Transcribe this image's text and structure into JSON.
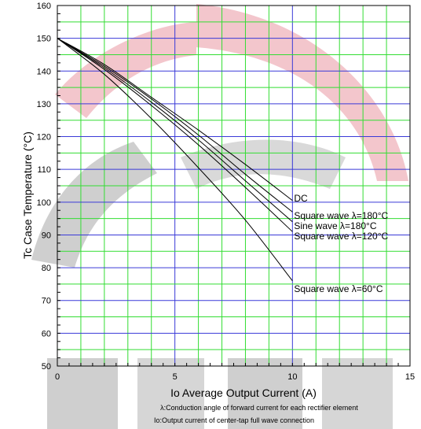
{
  "chart_data": {
    "type": "line",
    "xlabel": "Io    Average Output Current    (A)",
    "ylabel": "Tc    Case Temperature    (°C)",
    "xlim": [
      0,
      15
    ],
    "ylim": [
      50,
      160
    ],
    "x_ticks": [
      0,
      5,
      10,
      15
    ],
    "y_ticks": [
      50,
      60,
      70,
      80,
      90,
      100,
      110,
      120,
      130,
      140,
      150,
      160
    ],
    "grid": true,
    "notes": [
      "λ:Conduction angle of forward current for each rectifier element",
      "Io:Output current of center-tap full wave connection"
    ],
    "series": [
      {
        "name": "DC",
        "x": [
          0,
          2,
          4,
          6,
          8,
          10
        ],
        "y": [
          150,
          142,
          132,
          122,
          111.5,
          100.5
        ]
      },
      {
        "name": "Square wave λ=180°C",
        "x": [
          0,
          2,
          4,
          6,
          8,
          10
        ],
        "y": [
          150,
          141.5,
          131.5,
          120.5,
          108.5,
          97
        ]
      },
      {
        "name": "Sine wave λ=180°C",
        "x": [
          0,
          2,
          4,
          6,
          8,
          10
        ],
        "y": [
          150,
          141,
          130.5,
          119,
          106.5,
          94
        ]
      },
      {
        "name": "Square wave λ=120°C",
        "x": [
          0,
          2,
          4,
          6,
          8,
          10
        ],
        "y": [
          150,
          140.5,
          129.5,
          117.5,
          104.5,
          91
        ]
      },
      {
        "name": "Square wave λ=60°C",
        "x": [
          0,
          2,
          4,
          6,
          8,
          10
        ],
        "y": [
          150,
          139,
          125.5,
          110.5,
          94.5,
          76
        ]
      }
    ]
  }
}
